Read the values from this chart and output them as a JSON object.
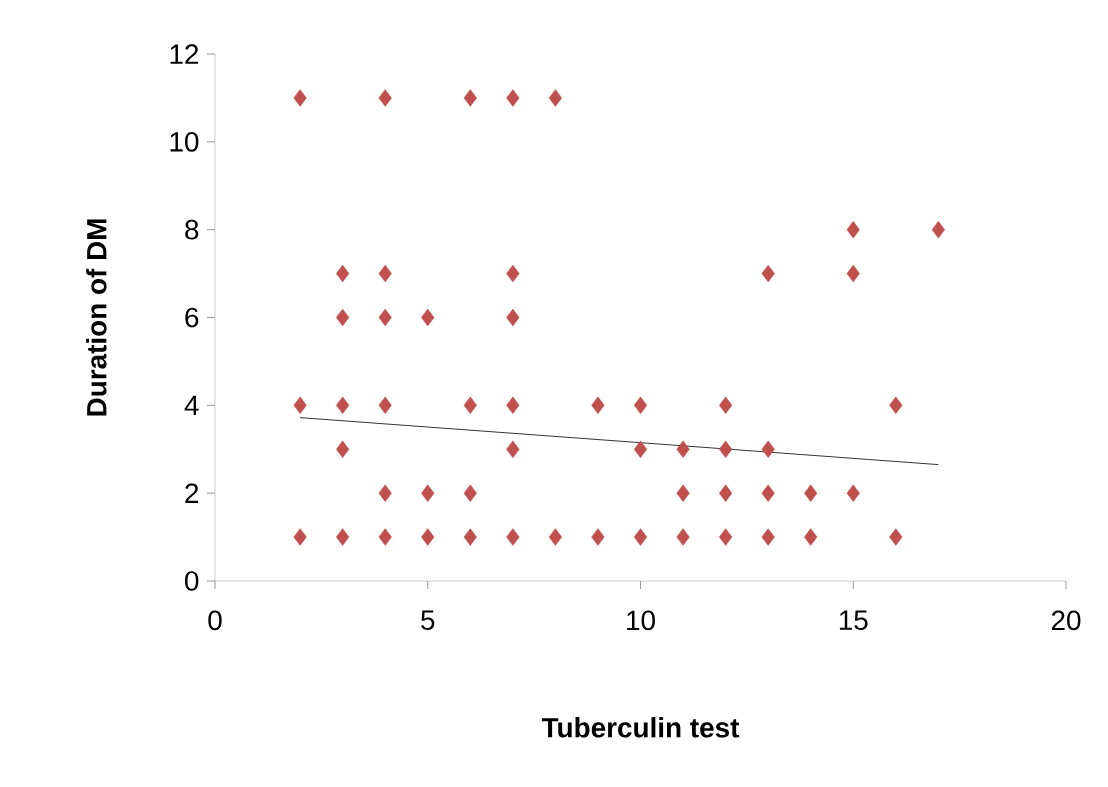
{
  "chart_data": {
    "type": "scatter",
    "xlabel": "Tuberculin test",
    "ylabel": "Duration of DM",
    "xlim": [
      0,
      20
    ],
    "xticks": [
      0,
      5,
      10,
      15,
      20
    ],
    "ylim": [
      0,
      12
    ],
    "yticks": [
      0,
      2,
      4,
      6,
      8,
      10,
      12
    ],
    "grid": false,
    "series": [
      {
        "color": "#c0504d",
        "marker": "diamond",
        "x": [
          2,
          4,
          6,
          7,
          8,
          15,
          17,
          3,
          4,
          7,
          13,
          15,
          3,
          4,
          5,
          7,
          2,
          3,
          4,
          6,
          7,
          9,
          10,
          12,
          16,
          3,
          7,
          10,
          11,
          12,
          13,
          4,
          5,
          6,
          11,
          12,
          13,
          14,
          15,
          2,
          3,
          4,
          5,
          6,
          7,
          8,
          9,
          10,
          11,
          12,
          13,
          14,
          16
        ],
        "values": [
          11,
          11,
          11,
          11,
          11,
          8,
          8,
          7,
          7,
          7,
          7,
          7,
          6,
          6,
          6,
          6,
          4,
          4,
          4,
          4,
          4,
          4,
          4,
          4,
          4,
          3,
          3,
          3,
          3,
          3,
          3,
          2,
          2,
          2,
          2,
          2,
          2,
          2,
          2,
          1,
          1,
          1,
          1,
          1,
          1,
          1,
          1,
          1,
          1,
          1,
          1,
          1,
          1
        ]
      },
      {
        "type": "line",
        "color": "#000000",
        "marker": "none",
        "x": [
          2,
          17
        ],
        "values": [
          3.72,
          2.65
        ]
      }
    ]
  }
}
